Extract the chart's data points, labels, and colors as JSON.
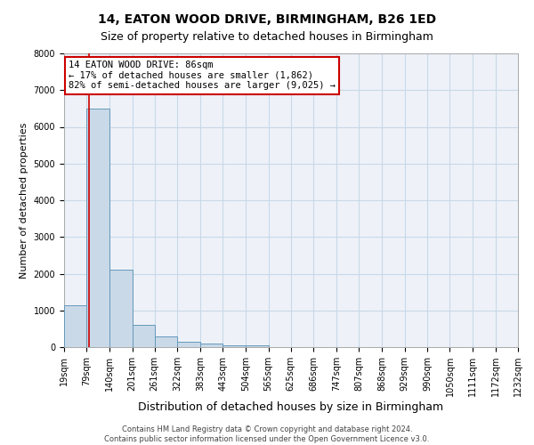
{
  "title": "14, EATON WOOD DRIVE, BIRMINGHAM, B26 1ED",
  "subtitle": "Size of property relative to detached houses in Birmingham",
  "xlabel": "Distribution of detached houses by size in Birmingham",
  "ylabel": "Number of detached properties",
  "property_label": "14 EATON WOOD DRIVE: 86sqm",
  "annotation_line1": "← 17% of detached houses are smaller (1,862)",
  "annotation_line2": "82% of semi-detached houses are larger (9,025) →",
  "footer_line1": "Contains HM Land Registry data © Crown copyright and database right 2024.",
  "footer_line2": "Contains public sector information licensed under the Open Government Licence v3.0.",
  "bin_edges": [
    19,
    79,
    140,
    201,
    261,
    322,
    383,
    443,
    504,
    565,
    625,
    686,
    747,
    807,
    868,
    929,
    990,
    1050,
    1111,
    1172,
    1232
  ],
  "bin_counts": [
    1150,
    6500,
    2100,
    600,
    300,
    150,
    100,
    60,
    50,
    0,
    0,
    0,
    0,
    0,
    0,
    0,
    0,
    0,
    0,
    0
  ],
  "bar_color": "#c9d9e8",
  "bar_edge_color": "#6699bb",
  "grid_color": "#c8d8e8",
  "background_color": "#eef2f8",
  "vline_color": "#cc0000",
  "vline_x": 86,
  "ylim_max": 8000,
  "yticks": [
    0,
    1000,
    2000,
    3000,
    4000,
    5000,
    6000,
    7000,
    8000
  ],
  "title_fontsize": 10,
  "subtitle_fontsize": 9,
  "ylabel_fontsize": 8,
  "xlabel_fontsize": 9,
  "tick_fontsize": 7,
  "annotation_fontsize": 7.5,
  "footer_fontsize": 6
}
